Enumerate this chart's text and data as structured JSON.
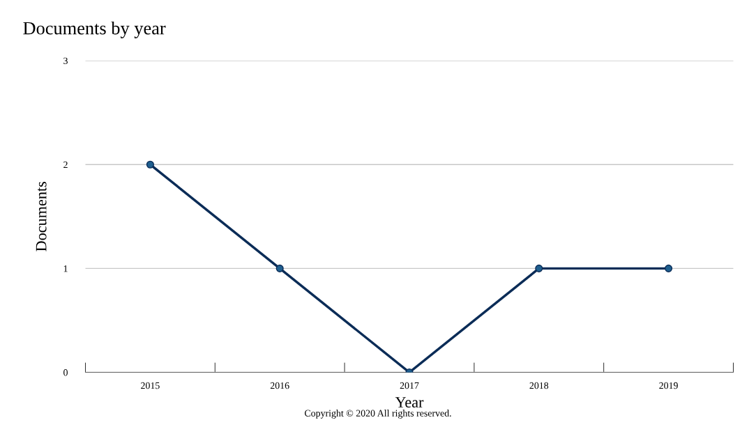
{
  "chart_data": {
    "type": "line",
    "title": "Documents by year",
    "xlabel": "Year",
    "ylabel": "Documents",
    "categories": [
      "2015",
      "2016",
      "2017",
      "2018",
      "2019"
    ],
    "series": [
      {
        "color": "#0b2c57",
        "values": [
          2,
          1,
          0,
          1,
          1
        ]
      }
    ],
    "ylim": [
      0,
      3
    ],
    "yticks": [
      0,
      1,
      2,
      3
    ],
    "grid": "y",
    "marker": "circle",
    "line_style": "solid",
    "annotations": [
      "Copyright © 2020 All rights reserved."
    ]
  }
}
